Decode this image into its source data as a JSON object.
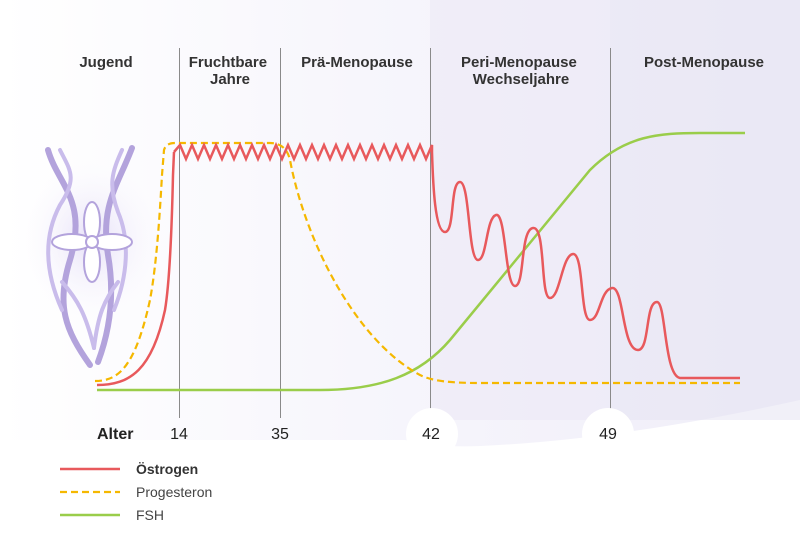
{
  "chart_data": {
    "type": "line",
    "xlabel": "Alter",
    "x_ticks": [
      "14",
      "35",
      "42",
      "49"
    ],
    "phases": [
      {
        "lines": [
          "Jugend"
        ]
      },
      {
        "lines": [
          "Fruchtbare",
          "Jahre"
        ]
      },
      {
        "lines": [
          "Prä-Menopause"
        ]
      },
      {
        "lines": [
          "Peri-Menopause",
          "Wechseljahre"
        ]
      },
      {
        "lines": [
          "Post-Menopause"
        ]
      }
    ],
    "series": [
      {
        "name": "Östrogen",
        "color": "#e8595c",
        "dash": "solid"
      },
      {
        "name": "Progesteron",
        "color": "#f5b800",
        "dash": "dashed"
      },
      {
        "name": "FSH",
        "color": "#9acd4a",
        "dash": "solid"
      }
    ],
    "grid": false,
    "legend_position": "bottom-left",
    "illustration": "female-silhouette-with-flower-icon"
  }
}
